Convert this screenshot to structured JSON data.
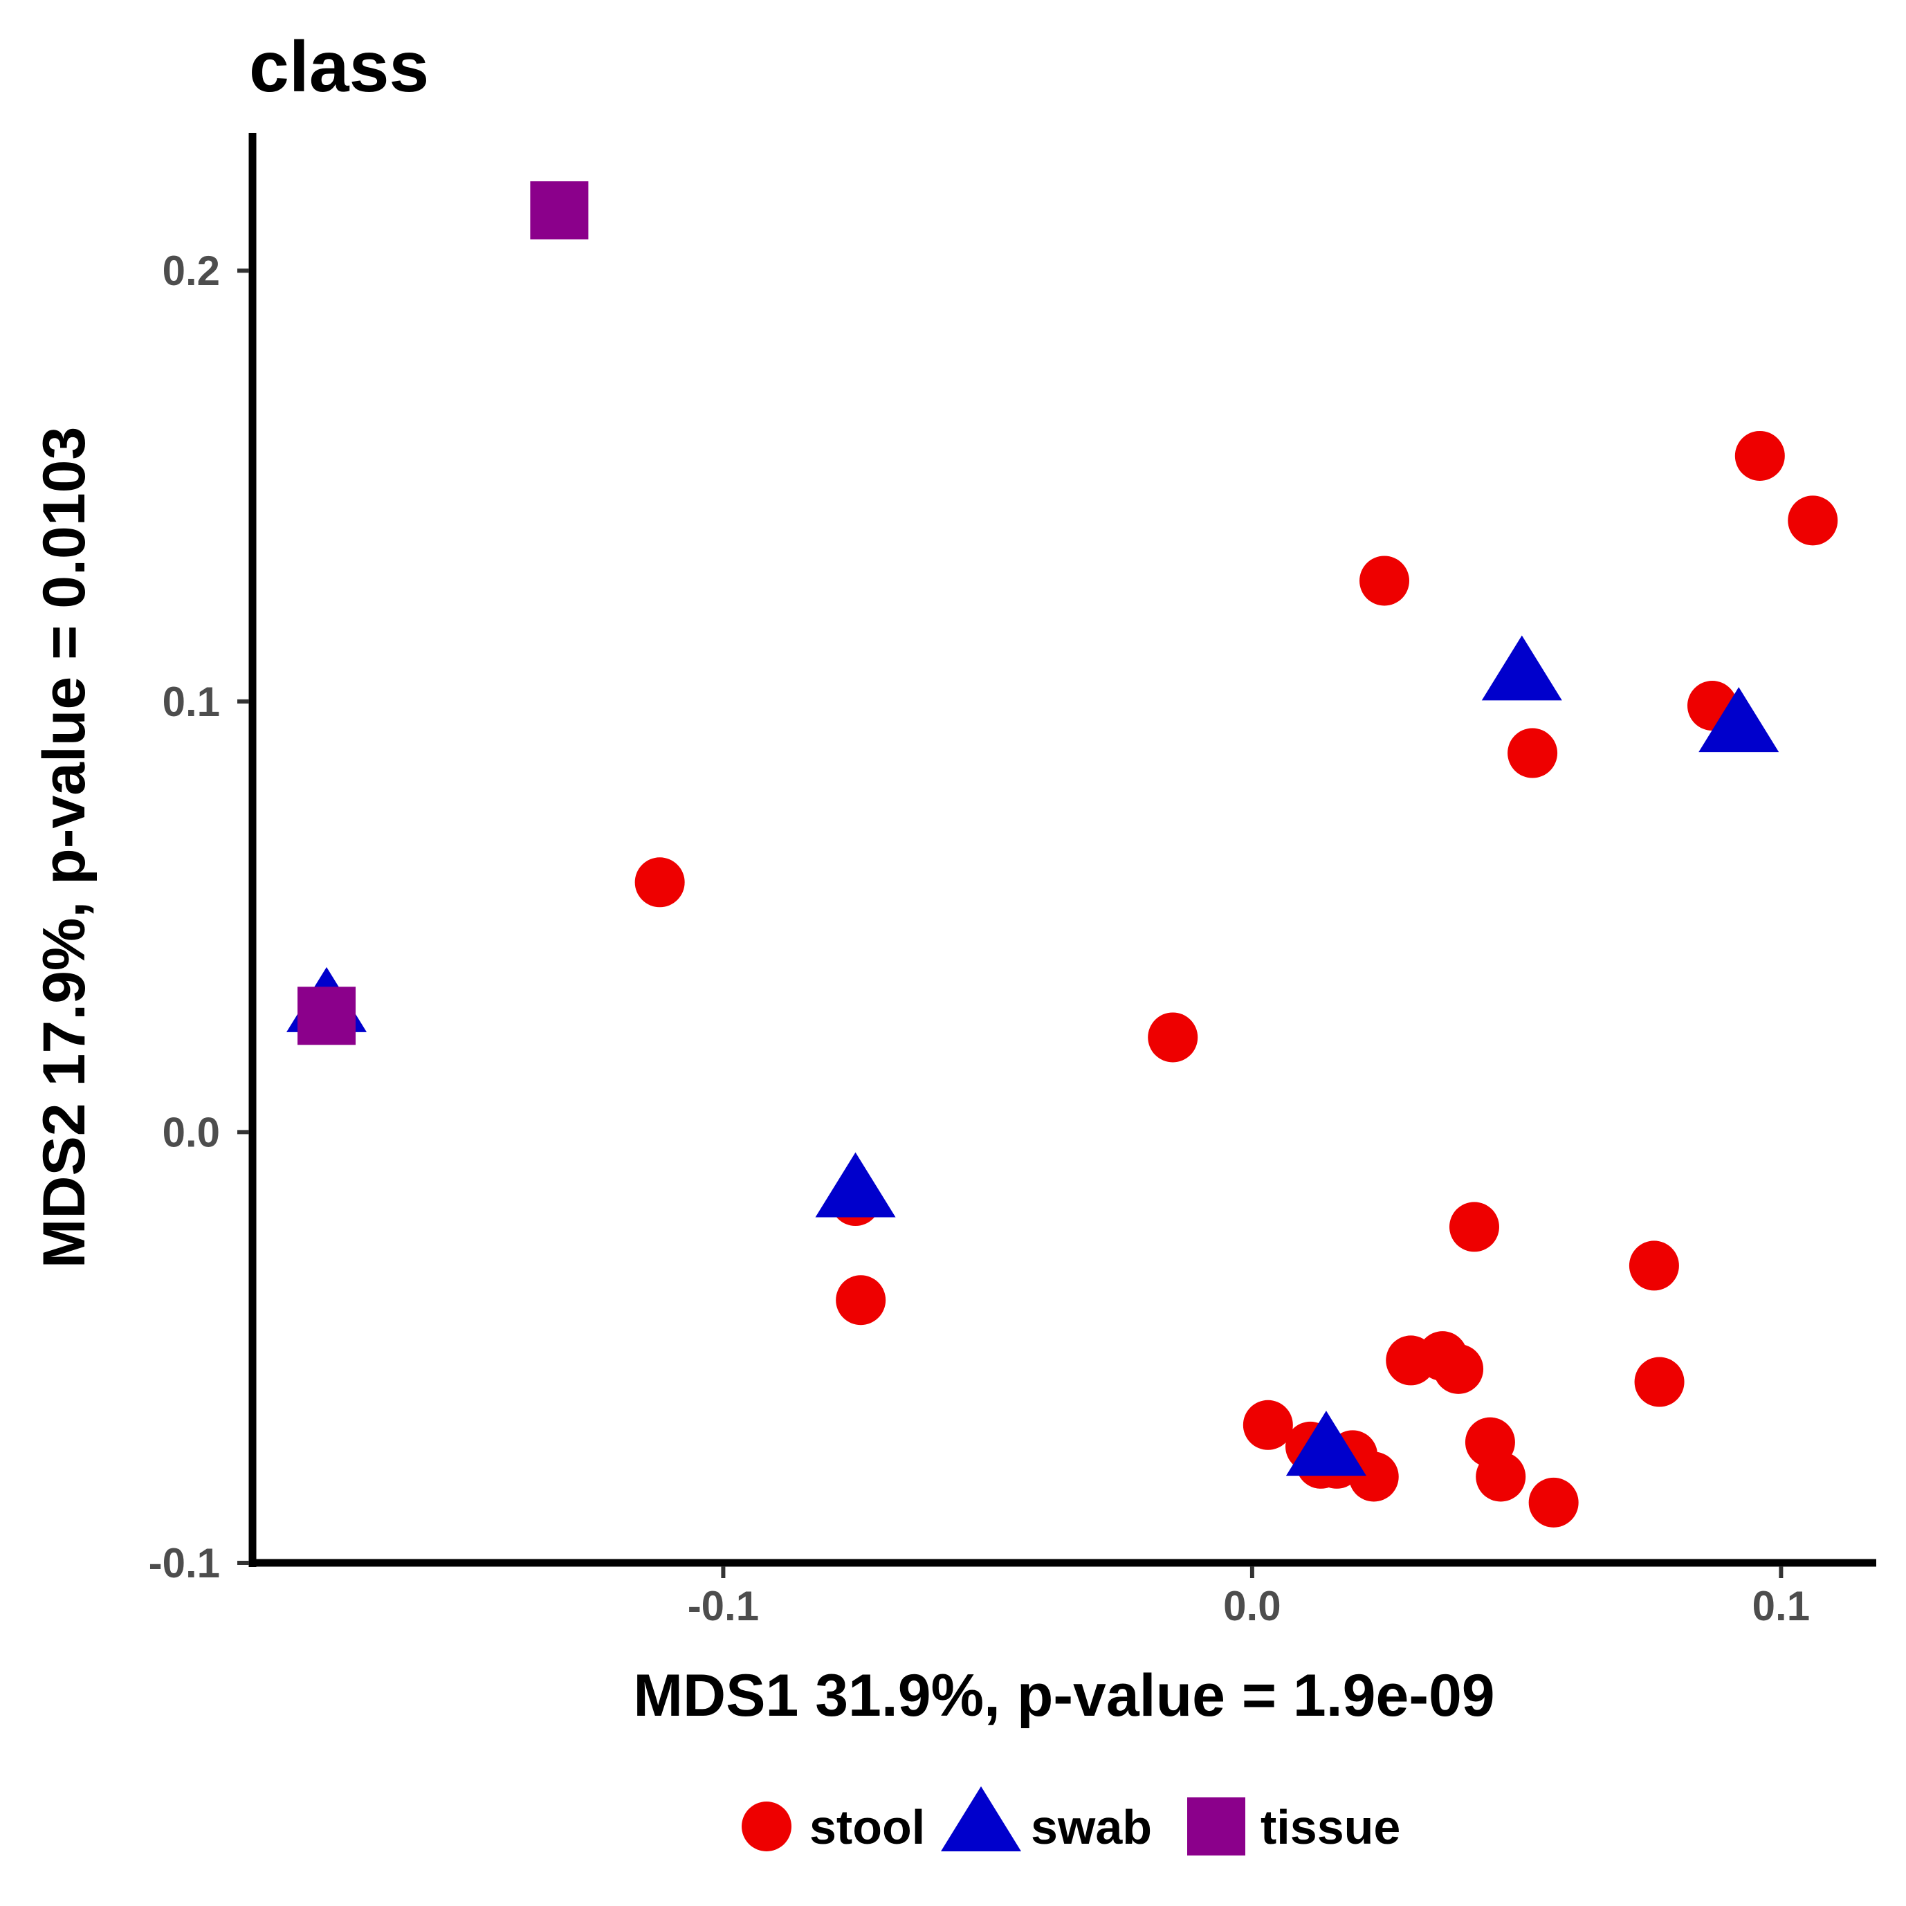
{
  "chart_data": {
    "type": "scatter",
    "title": "class",
    "xlabel": "MDS1 31.9%, p-value = 1.9e-09",
    "ylabel": "MDS2 17.9%, p-value = 0.0103",
    "xlim": [
      -0.189,
      0.118
    ],
    "ylim": [
      -0.1,
      0.232
    ],
    "xticks": [
      -0.1,
      0.0,
      0.1
    ],
    "xtick_labels": [
      "-0.1",
      "0.0",
      "0.1"
    ],
    "yticks": [
      -0.1,
      0.0,
      0.1,
      0.2
    ],
    "ytick_labels": [
      "-0.1",
      "0.0",
      "0.1",
      "0.2"
    ],
    "grid": false,
    "legend_position": "bottom",
    "series": [
      {
        "name": "stool",
        "shape": "circle",
        "color": "#ee0000",
        "points": [
          [
            -0.112,
            0.058
          ],
          [
            -0.075,
            -0.016
          ],
          [
            -0.074,
            -0.039
          ],
          [
            -0.015,
            0.022
          ],
          [
            0.025,
            0.128
          ],
          [
            0.053,
            0.088
          ],
          [
            0.087,
            0.099
          ],
          [
            0.096,
            0.157
          ],
          [
            0.106,
            0.142
          ],
          [
            0.003,
            -0.068
          ],
          [
            0.011,
            -0.073
          ],
          [
            0.013,
            -0.077
          ],
          [
            0.016,
            -0.077
          ],
          [
            0.019,
            -0.075
          ],
          [
            0.023,
            -0.08
          ],
          [
            0.03,
            -0.053
          ],
          [
            0.036,
            -0.052
          ],
          [
            0.039,
            -0.055
          ],
          [
            0.042,
            -0.022
          ],
          [
            0.045,
            -0.072
          ],
          [
            0.047,
            -0.08
          ],
          [
            0.057,
            -0.086
          ],
          [
            0.076,
            -0.031
          ],
          [
            0.077,
            -0.058
          ]
        ]
      },
      {
        "name": "swab",
        "shape": "triangle",
        "color": "#0000cc",
        "points": [
          [
            -0.175,
            0.029
          ],
          [
            -0.075,
            -0.014
          ],
          [
            0.014,
            -0.074
          ],
          [
            0.051,
            0.106
          ],
          [
            0.092,
            0.094
          ]
        ]
      },
      {
        "name": "tissue",
        "shape": "square",
        "color": "#8b008b",
        "points": [
          [
            -0.175,
            0.027
          ],
          [
            -0.131,
            0.214
          ]
        ]
      }
    ]
  }
}
